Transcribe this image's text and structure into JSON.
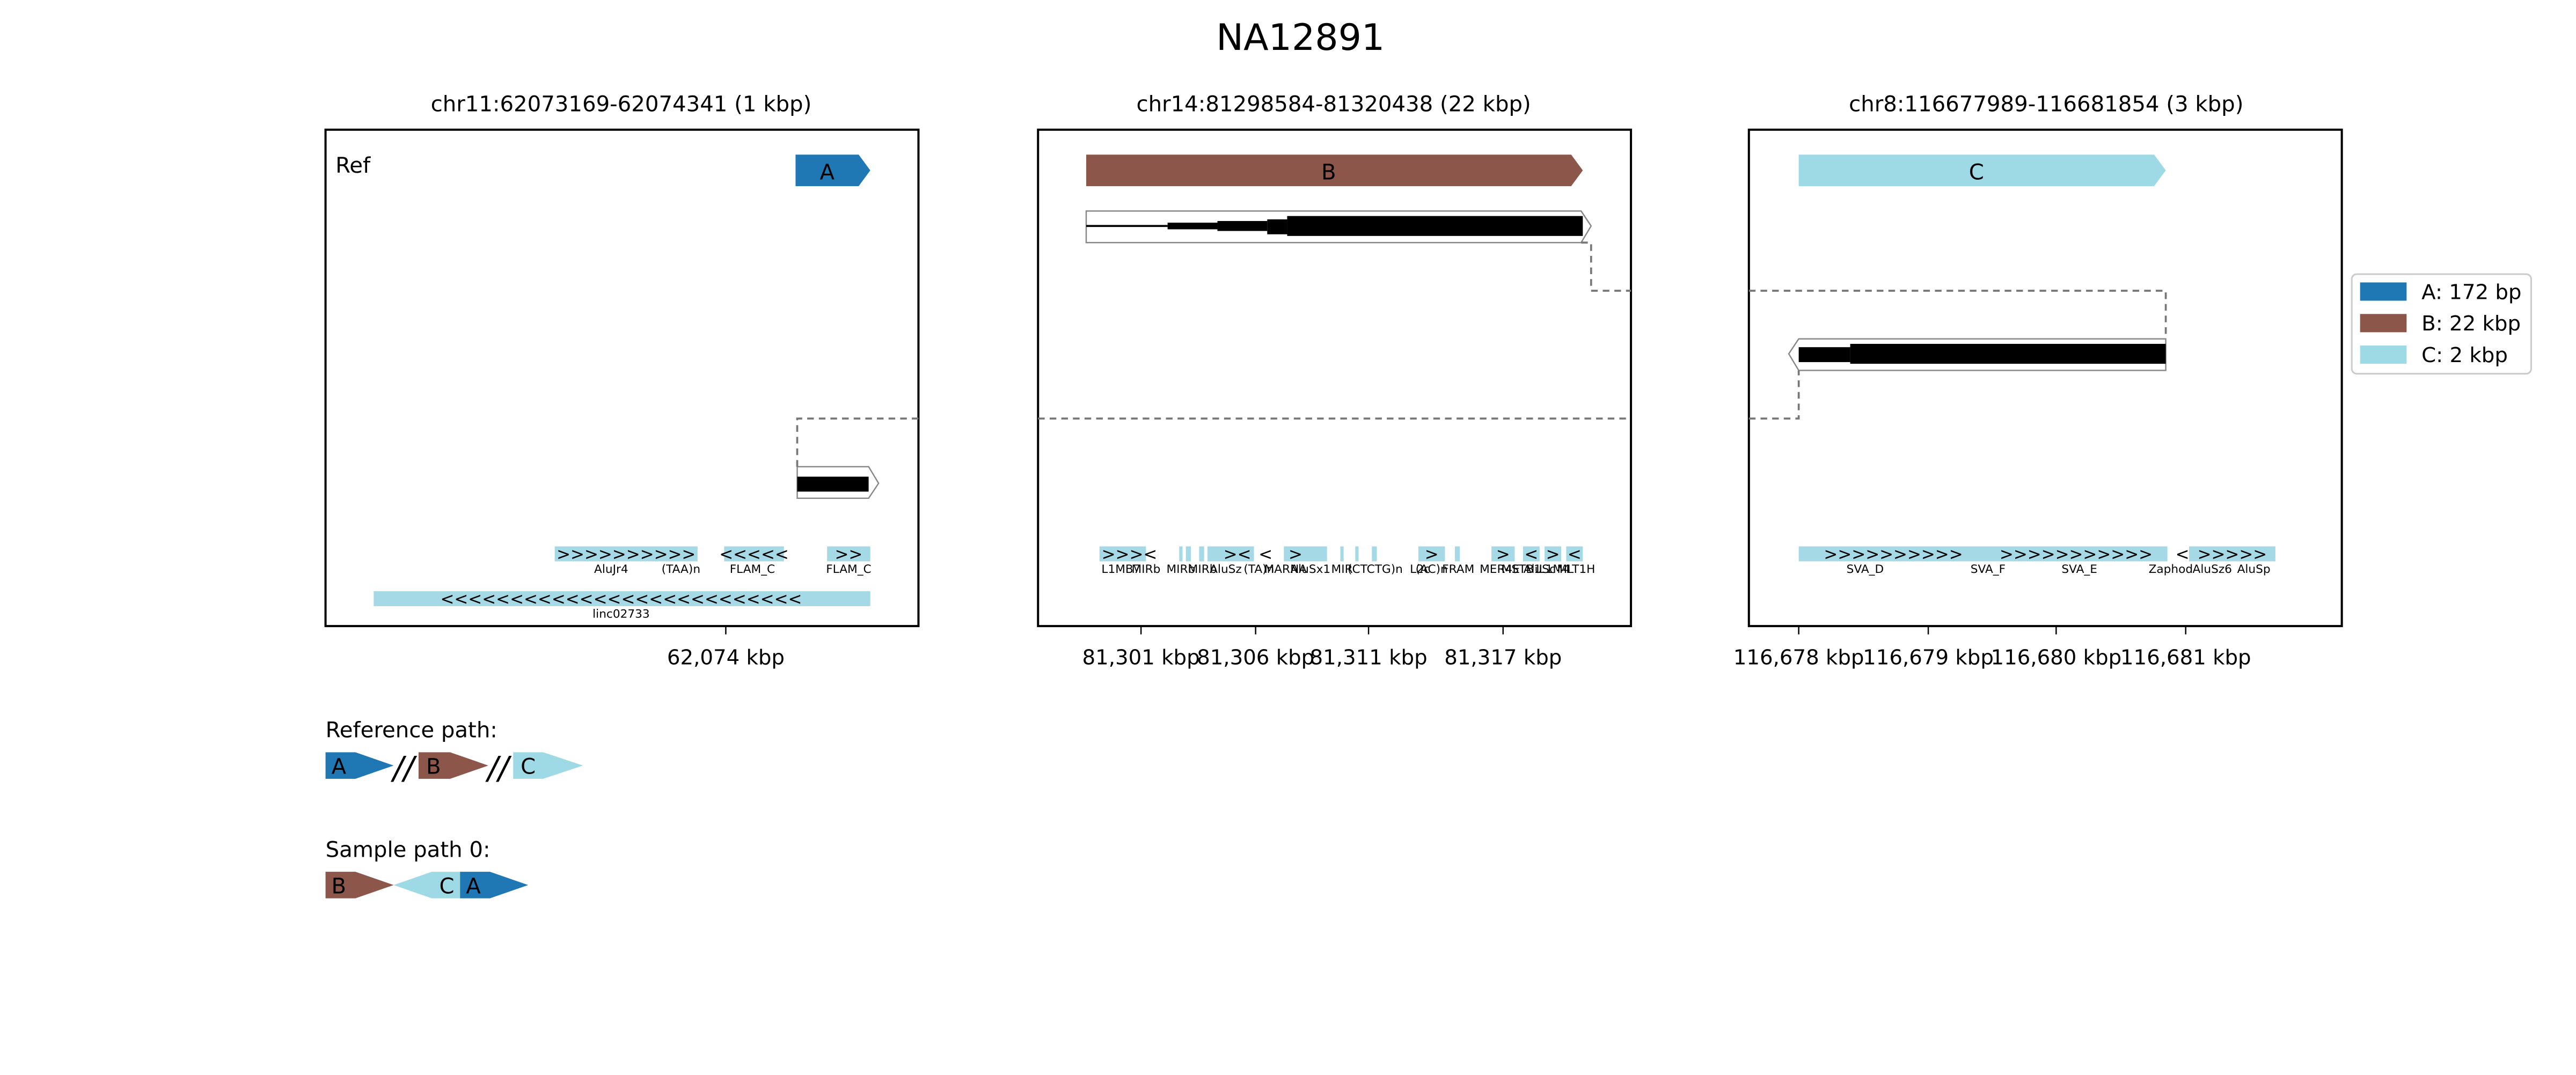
{
  "title": "NA12891",
  "colors": {
    "A": "#1f77b4",
    "B": "#8c564b",
    "C": "#9edae5",
    "repeat": "#a6d9e6",
    "black": "#000000"
  },
  "panels": [
    {
      "header": "chr11:62073169-62074341 (1 kbp)",
      "ref_label": "Ref",
      "segments": [
        {
          "id": "A",
          "label": "A",
          "strand": "+"
        }
      ],
      "ticks": [
        "62,074 kbp"
      ],
      "repeats": [
        {
          "arrows": ">>>>>>>>>>",
          "label": "AluJr4"
        },
        {
          "arrows": "",
          "label": "(TAA)n"
        },
        {
          "arrows": "<<<<<",
          "label": "FLAM_C"
        },
        {
          "arrows": ">>",
          "label": "FLAM_C"
        },
        {
          "arrows": "<<<<<<<<<<<<<<<<<<<<<<<<<<",
          "label": "linc02733"
        }
      ]
    },
    {
      "header": "chr14:81298584-81320438 (22 kbp)",
      "segments": [
        {
          "id": "B",
          "label": "B",
          "strand": "+"
        }
      ],
      "ticks": [
        "81,301 kbp",
        "81,306 kbp",
        "81,311 kbp",
        "81,317 kbp"
      ],
      "repeats": [
        {
          "arrows": ">>><",
          "label": "L1MB7"
        },
        {
          "arrows": "",
          "label": "MIRb"
        },
        {
          "arrows": "",
          "label": "MIRb"
        },
        {
          "arrows": "",
          "label": "MIRb"
        },
        {
          "arrows": "><",
          "label": "AluSz"
        },
        {
          "arrows": "<",
          "label": "(TA)n"
        },
        {
          "arrows": "",
          "label": "MARNA"
        },
        {
          "arrows": ">",
          "label": "AluSx1"
        },
        {
          "arrows": "",
          "label": "MIR"
        },
        {
          "arrows": "",
          "label": "(CTCTG)n"
        },
        {
          "arrows": ">",
          "label": "L2c"
        },
        {
          "arrows": "",
          "label": "(AC)n"
        },
        {
          "arrows": "",
          "label": "FRAM"
        },
        {
          "arrows": ">",
          "label": "MER4E"
        },
        {
          "arrows": "",
          "label": "MSTB1"
        },
        {
          "arrows": "<",
          "label": "AluSc"
        },
        {
          "arrows": ">",
          "label": "L1M4"
        },
        {
          "arrows": "<",
          "label": "MLT1H"
        }
      ]
    },
    {
      "header": "chr8:116677989-116681854 (3 kbp)",
      "segments": [
        {
          "id": "C",
          "label": "C",
          "strand": "+"
        }
      ],
      "ticks": [
        "116,678 kbp",
        "116,679 kbp",
        "116,680 kbp",
        "116,681 kbp"
      ],
      "repeats": [
        {
          "arrows": ">>>>>>>>>>",
          "label": "SVA_D"
        },
        {
          "arrows": "",
          "label": "SVA_F"
        },
        {
          "arrows": ">>>>>>>>>>>",
          "label": "SVA_E"
        },
        {
          "arrows": "<",
          "label": "Zaphod"
        },
        {
          "arrows": ">>>>>",
          "label": "AluSz6"
        },
        {
          "arrows": "",
          "label": "AluSp"
        }
      ]
    }
  ],
  "legend": [
    {
      "id": "A",
      "label": "A: 172 bp"
    },
    {
      "id": "B",
      "label": "B: 22 kbp"
    },
    {
      "id": "C",
      "label": "C: 2 kbp"
    }
  ],
  "paths": [
    {
      "title": "Reference path:",
      "items": [
        {
          "id": "A",
          "label": "A",
          "strand": "+"
        },
        {
          "sep": "//"
        },
        {
          "id": "B",
          "label": "B",
          "strand": "+"
        },
        {
          "sep": "//"
        },
        {
          "id": "C",
          "label": "C",
          "strand": "+"
        }
      ]
    },
    {
      "title": "Sample path 0:",
      "items": [
        {
          "id": "B",
          "label": "B",
          "strand": "+"
        },
        {
          "id": "C",
          "label": "C",
          "strand": "-"
        },
        {
          "id": "A",
          "label": "A",
          "strand": "+"
        }
      ]
    }
  ]
}
